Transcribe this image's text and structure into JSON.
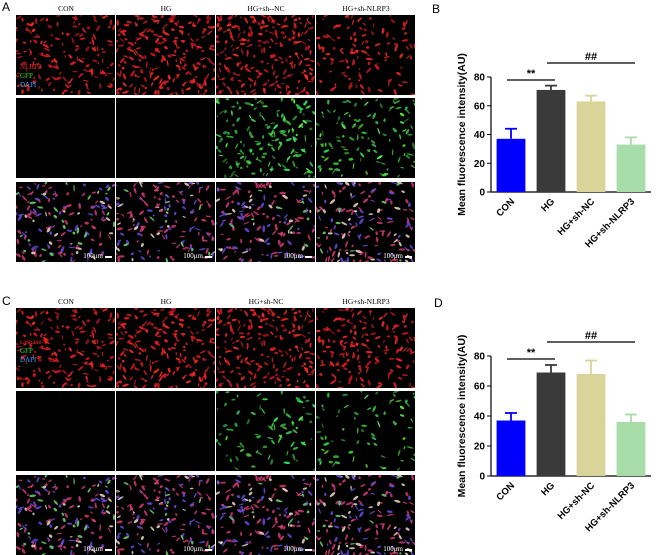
{
  "panel_A": {
    "letter": "A",
    "columns": [
      "CON",
      "HG",
      "HG+sh--NC",
      "HG+sh-NLRP3"
    ],
    "channels": [
      {
        "label": "NLRP3",
        "color": "#ff2a2a"
      },
      {
        "label": "GFP",
        "color": "#3adf3a"
      },
      {
        "label": "DAPI",
        "color": "#3aa0ff"
      }
    ],
    "scale_bar": "100μm"
  },
  "panel_C": {
    "letter": "C",
    "columns": [
      "CON",
      "HG",
      "HG+sh-NC",
      "HG+sh-NLRP3"
    ],
    "channels": [
      {
        "label": "caspase-1",
        "color": "#ff2a2a"
      },
      {
        "label": "GFP",
        "color": "#3adf3a"
      },
      {
        "label": "DAPI",
        "color": "#3aa0ff"
      }
    ],
    "scale_bar": "100μm"
  },
  "panel_B": {
    "letter": "B"
  },
  "panel_D": {
    "letter": "D"
  },
  "chart_data": [
    {
      "type": "bar",
      "categories": [
        "CON",
        "HG",
        "HG+sh-NC",
        "HG+sh-NLRP3"
      ],
      "values": [
        37,
        71,
        63,
        33
      ],
      "errors": [
        7,
        3,
        4,
        5
      ],
      "colors": [
        "#0000ff",
        "#3a3a3a",
        "#d8d49a",
        "#a8dca8"
      ],
      "title": "",
      "xlabel": "",
      "ylabel": "Mean fluorescence intensity(AU)",
      "ylim": [
        0,
        80
      ],
      "yticks": [
        0,
        20,
        40,
        60,
        80
      ],
      "grid": false,
      "annotations": [
        {
          "text": "**",
          "from": "CON",
          "to": "HG"
        },
        {
          "text": "##",
          "from": "HG",
          "to": "HG+sh-NLRP3"
        }
      ]
    },
    {
      "type": "bar",
      "categories": [
        "CON",
        "HG",
        "HG+sh-NC",
        "HG+sh-NLRP3"
      ],
      "values": [
        37,
        69,
        68,
        36
      ],
      "errors": [
        5,
        5,
        9,
        5
      ],
      "colors": [
        "#0000ff",
        "#3a3a3a",
        "#d8d49a",
        "#a8dca8"
      ],
      "title": "",
      "xlabel": "",
      "ylabel": "Mean fluorescence intensity(AU)",
      "ylim": [
        0,
        80
      ],
      "yticks": [
        0,
        20,
        40,
        60,
        80
      ],
      "grid": false,
      "annotations": [
        {
          "text": "**",
          "from": "CON",
          "to": "HG"
        },
        {
          "text": "##",
          "from": "HG",
          "to": "HG+sh-NLRP3"
        }
      ]
    }
  ]
}
